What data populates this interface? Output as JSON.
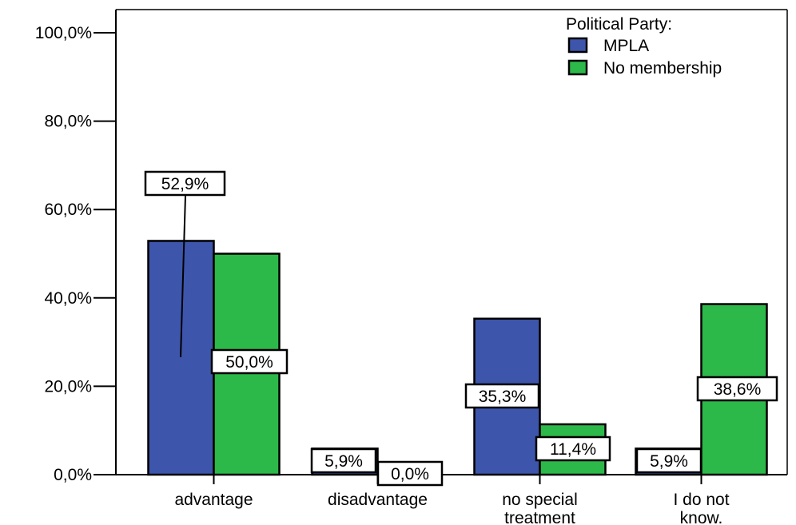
{
  "chart_data": {
    "type": "bar",
    "categories": [
      [
        "advantage"
      ],
      [
        "disadvantage"
      ],
      [
        "no special",
        "treatment"
      ],
      [
        "I do not",
        "know."
      ]
    ],
    "series": [
      {
        "name": "MPLA",
        "color": "#3d55ab",
        "values": [
          52.9,
          5.9,
          35.3,
          5.9
        ],
        "labels": [
          "52,9%",
          "5,9%",
          "35,3%",
          "5,9%"
        ]
      },
      {
        "name": "No membership",
        "color": "#2db84a",
        "values": [
          50.0,
          0.0,
          11.4,
          38.6
        ],
        "labels": [
          "50,0%",
          "0,0%",
          "11,4%",
          "38,6%"
        ]
      }
    ],
    "yticks": [
      {
        "value": 0,
        "label": "0,0%"
      },
      {
        "value": 20,
        "label": "20,0%"
      },
      {
        "value": 40,
        "label": "40,0%"
      },
      {
        "value": 60,
        "label": "60,0%"
      },
      {
        "value": 80,
        "label": "80,0%"
      },
      {
        "value": 100,
        "label": "100,0%"
      }
    ],
    "ylim": [
      0,
      100
    ],
    "legend": {
      "title": "Political Party:",
      "placement": "top-right"
    },
    "grid": false
  }
}
